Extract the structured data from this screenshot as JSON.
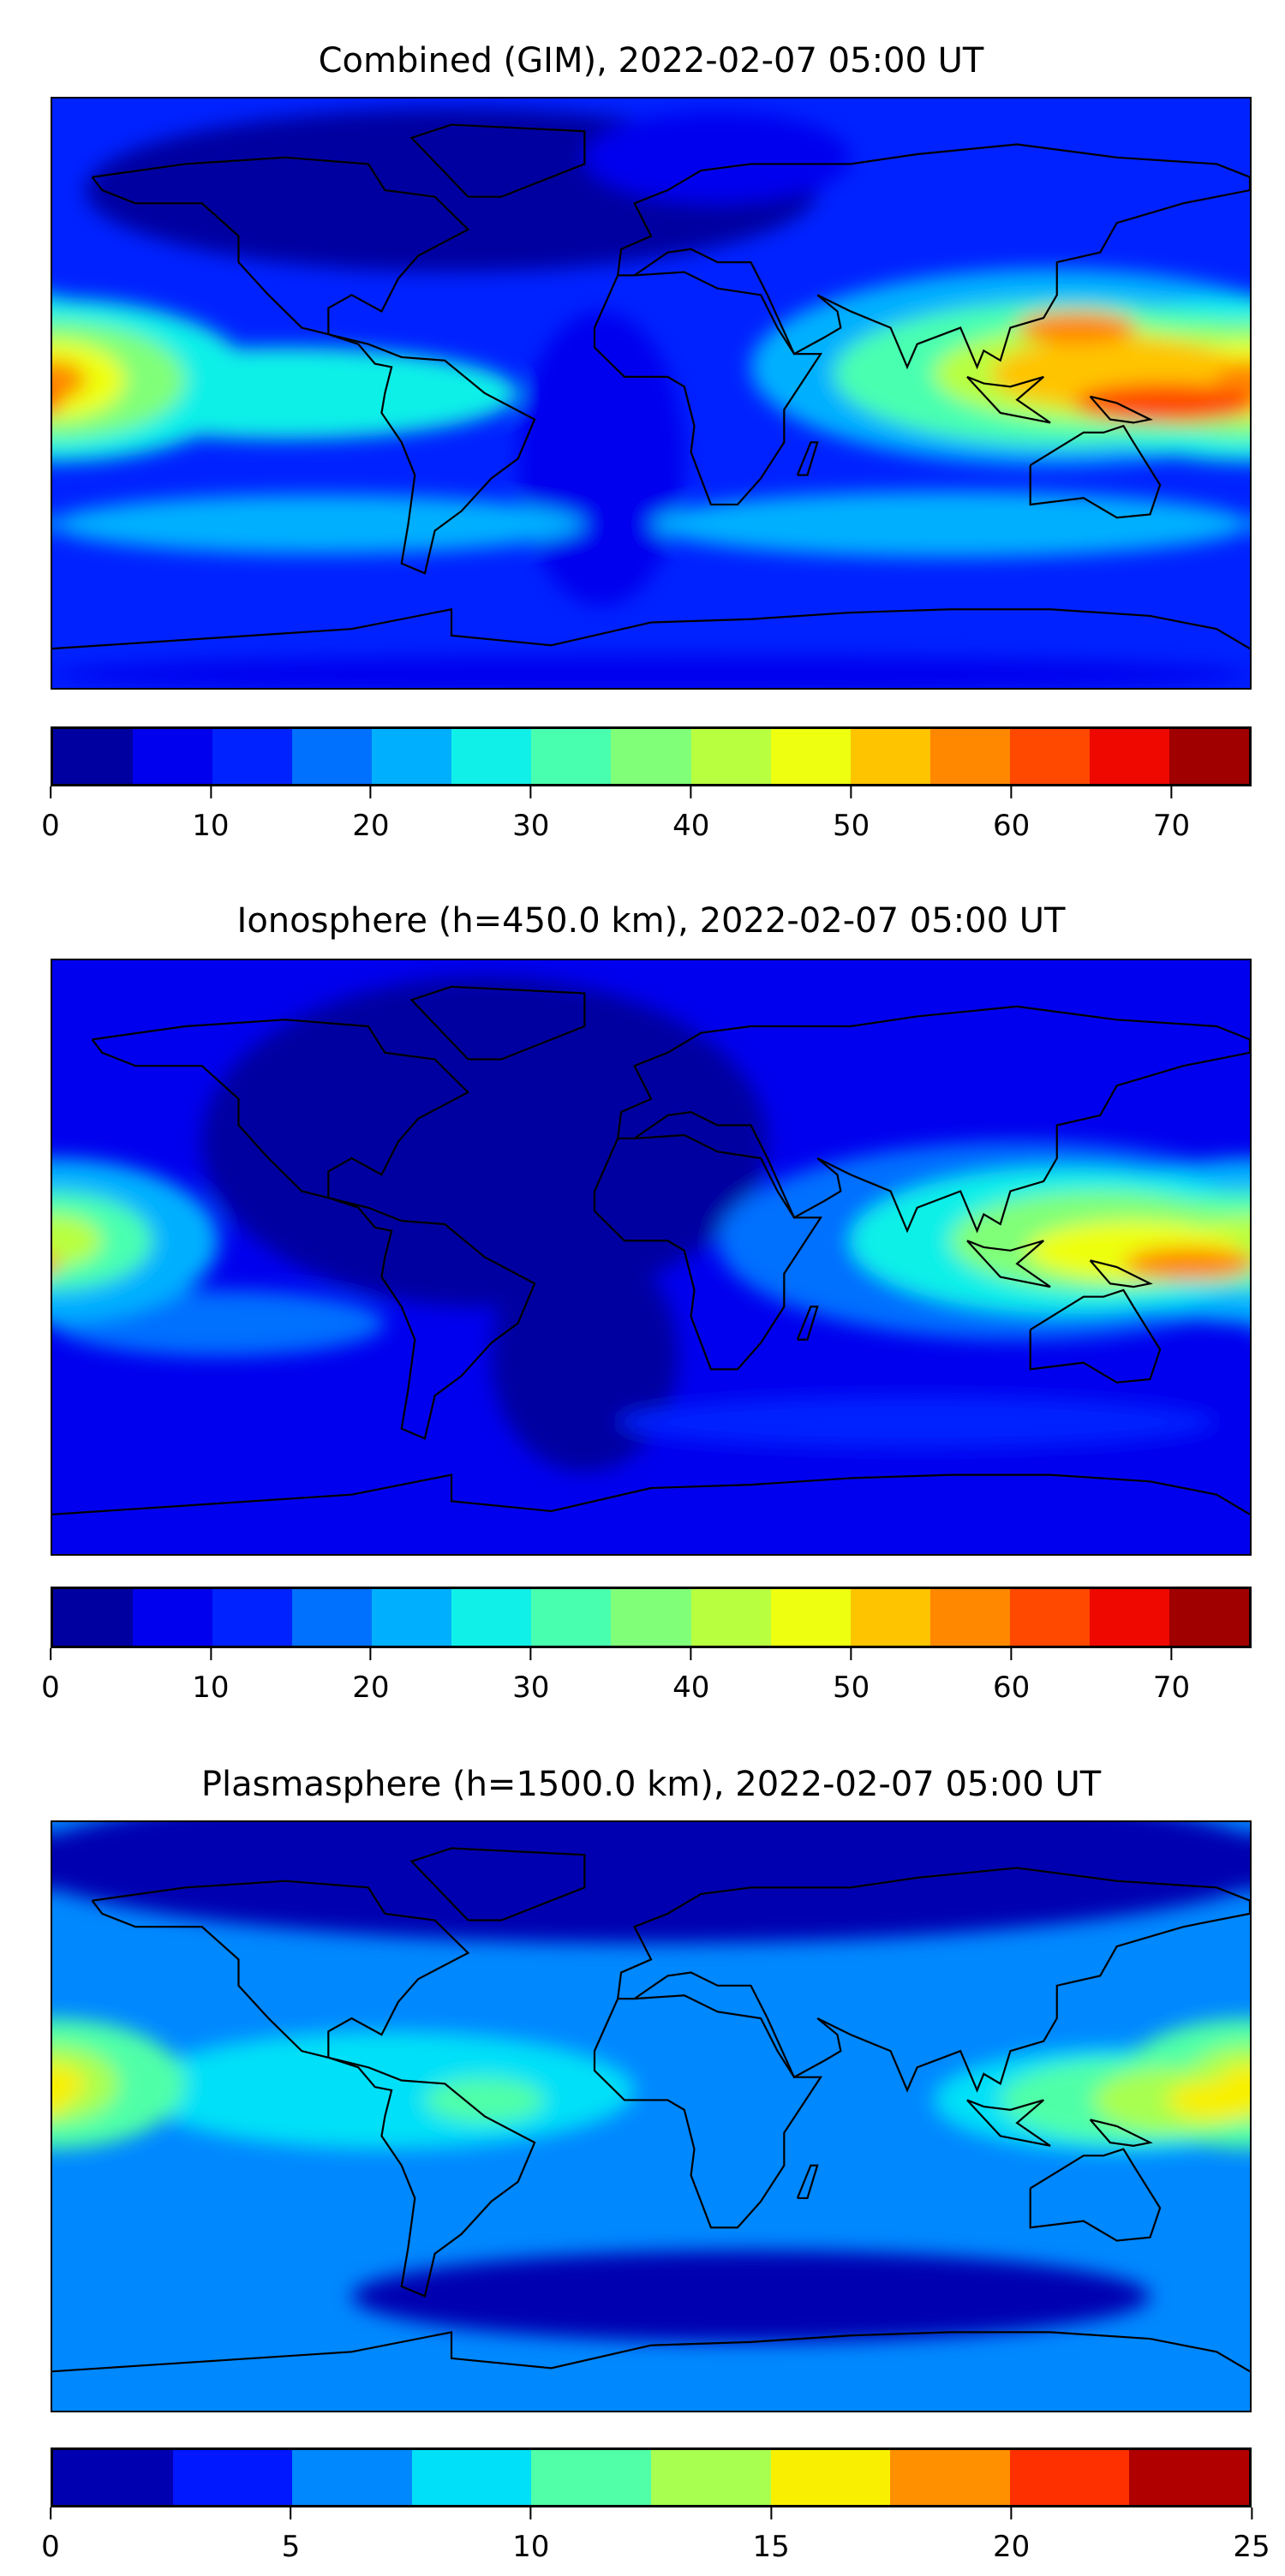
{
  "chart_data": [
    {
      "type": "heatmap",
      "title": "Combined (GIM), 2022-02-07 05:00 UT",
      "xlim": [
        -180,
        180
      ],
      "ylim": [
        -90,
        90
      ],
      "colorbar": {
        "vmin": 0,
        "vmax": 75,
        "step": 5,
        "ticks": [
          "0",
          "10",
          "20",
          "30",
          "40",
          "50",
          "60",
          "70"
        ],
        "tick_values": [
          0,
          10,
          20,
          30,
          40,
          50,
          60,
          70
        ],
        "colors": [
          "#0000a0",
          "#0000ee",
          "#0022ff",
          "#0070ff",
          "#00b0ff",
          "#10f0e8",
          "#48ffb0",
          "#80ff78",
          "#b8ff40",
          "#eeff10",
          "#ffc400",
          "#ff8800",
          "#ff4800",
          "#ee0800",
          "#a00000"
        ]
      },
      "background_value": 12,
      "features": [
        {
          "lon": -60,
          "lat": 62,
          "rlon": 110,
          "rlat": 25,
          "value": 3
        },
        {
          "lon": -15,
          "lat": -20,
          "rlon": 25,
          "rlat": 45,
          "value": 8
        },
        {
          "lon": 20,
          "lat": 72,
          "rlon": 40,
          "rlat": 14,
          "value": 8
        },
        {
          "lon": 0,
          "lat": -86,
          "rlon": 180,
          "rlat": 6,
          "value": 7
        },
        {
          "lon": -110,
          "lat": 0,
          "rlon": 70,
          "rlat": 14,
          "value": 27
        },
        {
          "lon": -100,
          "lat": -40,
          "rlon": 80,
          "rlat": 9,
          "value": 22
        },
        {
          "lon": 90,
          "lat": -40,
          "rlon": 90,
          "rlat": 10,
          "value": 22
        },
        {
          "lon": -180,
          "lat": 4,
          "rlon": 60,
          "rlat": 25,
          "value": 27
        },
        {
          "lon": -180,
          "lat": 4,
          "rlon": 40,
          "rlat": 18,
          "value": 37
        },
        {
          "lon": -180,
          "lat": 4,
          "rlon": 22,
          "rlat": 12,
          "value": 47
        },
        {
          "lon": -180,
          "lat": 4,
          "rlon": 10,
          "rlat": 6,
          "value": 57
        },
        {
          "lon": 120,
          "lat": 8,
          "rlon": 90,
          "rlat": 30,
          "value": 22
        },
        {
          "lon": 125,
          "lat": 6,
          "rlon": 70,
          "rlat": 22,
          "value": 32
        },
        {
          "lon": 135,
          "lat": 6,
          "rlon": 50,
          "rlat": 15,
          "value": 42
        },
        {
          "lon": 140,
          "lat": 6,
          "rlon": 38,
          "rlat": 11,
          "value": 52
        },
        {
          "lon": 128,
          "lat": 20,
          "rlon": 18,
          "rlat": 5,
          "value": 57
        },
        {
          "lon": 155,
          "lat": -3,
          "rlon": 28,
          "rlat": 6,
          "value": 62
        }
      ]
    },
    {
      "type": "heatmap",
      "title": "Ionosphere  (h=450.0 km), 2022-02-07 05:00 UT",
      "xlim": [
        -180,
        180
      ],
      "ylim": [
        -90,
        90
      ],
      "colorbar": {
        "vmin": 0,
        "vmax": 75,
        "step": 5,
        "ticks": [
          "0",
          "10",
          "20",
          "30",
          "40",
          "50",
          "60",
          "70"
        ],
        "tick_values": [
          0,
          10,
          20,
          30,
          40,
          50,
          60,
          70
        ],
        "colors": [
          "#0000a0",
          "#0000ee",
          "#0022ff",
          "#0070ff",
          "#00b0ff",
          "#10f0e8",
          "#48ffb0",
          "#80ff78",
          "#b8ff40",
          "#eeff10",
          "#ffc400",
          "#ff8800",
          "#ff4800",
          "#ee0800",
          "#a00000"
        ]
      },
      "background_value": 9,
      "features": [
        {
          "lon": -50,
          "lat": 35,
          "rlon": 85,
          "rlat": 50,
          "value": 2
        },
        {
          "lon": -20,
          "lat": -30,
          "rlon": 28,
          "rlat": 35,
          "value": 2
        },
        {
          "lon": -130,
          "lat": -20,
          "rlon": 50,
          "rlat": 10,
          "value": 17
        },
        {
          "lon": 80,
          "lat": -50,
          "rlon": 90,
          "rlat": 8,
          "value": 12
        },
        {
          "lon": -180,
          "lat": 5,
          "rlon": 50,
          "rlat": 25,
          "value": 22
        },
        {
          "lon": -180,
          "lat": 5,
          "rlon": 30,
          "rlat": 15,
          "value": 32
        },
        {
          "lon": -180,
          "lat": 5,
          "rlon": 15,
          "rlat": 8,
          "value": 42
        },
        {
          "lon": 110,
          "lat": 5,
          "rlon": 90,
          "rlat": 30,
          "value": 17
        },
        {
          "lon": 125,
          "lat": 5,
          "rlon": 65,
          "rlat": 22,
          "value": 27
        },
        {
          "lon": 135,
          "lat": 5,
          "rlon": 45,
          "rlat": 15,
          "value": 37
        },
        {
          "lon": 145,
          "lat": 2,
          "rlon": 32,
          "rlat": 9,
          "value": 47
        },
        {
          "lon": 162,
          "lat": -2,
          "rlon": 20,
          "rlat": 5,
          "value": 57
        }
      ]
    },
    {
      "type": "heatmap",
      "title": "Plasmasphere (h=1500.0 km), 2022-02-07 05:00 UT",
      "xlim": [
        -180,
        180
      ],
      "ylim": [
        -90,
        90
      ],
      "colorbar": {
        "vmin": 0,
        "vmax": 25,
        "step": 2.5,
        "ticks": [
          "0",
          "5",
          "10",
          "15",
          "20",
          "25"
        ],
        "tick_values": [
          0,
          5,
          10,
          15,
          20,
          25
        ],
        "colors": [
          "#0000b0",
          "#0018ff",
          "#0088ff",
          "#00e0f8",
          "#50ffa8",
          "#a8ff50",
          "#f8f000",
          "#ff9000",
          "#ff3000",
          "#b00000"
        ]
      },
      "background_value": 6,
      "features": [
        {
          "lon": 0,
          "lat": 78,
          "rlon": 190,
          "rlat": 25,
          "value": 1
        },
        {
          "lon": 30,
          "lat": -55,
          "rlon": 120,
          "rlat": 14,
          "value": 1
        },
        {
          "lon": -80,
          "lat": 8,
          "rlon": 75,
          "rlat": 18,
          "value": 8.5
        },
        {
          "lon": 140,
          "lat": 5,
          "rlon": 55,
          "rlat": 16,
          "value": 8.5
        },
        {
          "lon": -50,
          "lat": 5,
          "rlon": 18,
          "rlat": 7,
          "value": 11
        },
        {
          "lon": -180,
          "lat": 10,
          "rlon": 40,
          "rlat": 20,
          "value": 11
        },
        {
          "lon": -180,
          "lat": 10,
          "rlon": 20,
          "rlat": 12,
          "value": 13.5
        },
        {
          "lon": -180,
          "lat": 10,
          "rlon": 10,
          "rlat": 6,
          "value": 16
        },
        {
          "lon": 145,
          "lat": 5,
          "rlon": 40,
          "rlat": 13,
          "value": 11
        },
        {
          "lon": 158,
          "lat": 5,
          "rlon": 25,
          "rlat": 10,
          "value": 13.5
        },
        {
          "lon": 170,
          "lat": 5,
          "rlon": 15,
          "rlat": 6,
          "value": 16
        }
      ]
    }
  ]
}
